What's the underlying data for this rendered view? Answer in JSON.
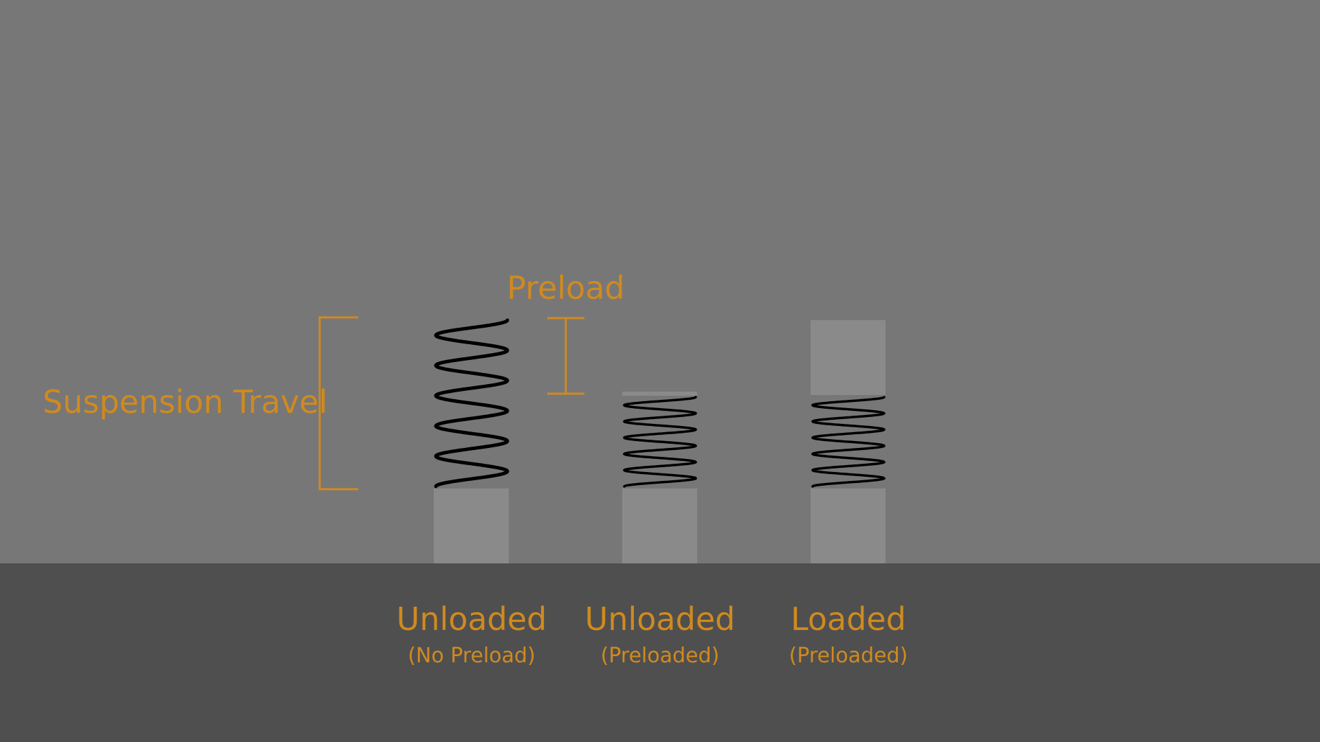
{
  "colors": {
    "background": "#777777",
    "ground": "#4f4f4f",
    "block": "#8a8a8a",
    "spring": "#000000",
    "accent": "#d08a1f"
  },
  "annotations": {
    "suspension_travel": "Suspension Travel",
    "preload": "Preload"
  },
  "states": [
    {
      "title": "Unloaded",
      "subtitle": "(No Preload)",
      "coils": 5,
      "top_block": "none"
    },
    {
      "title": "Unloaded",
      "subtitle": "(Preloaded)",
      "coils": 5,
      "top_block": "thin-cap"
    },
    {
      "title": "Loaded",
      "subtitle": "(Preloaded)",
      "coils": 5,
      "top_block": "block"
    }
  ]
}
